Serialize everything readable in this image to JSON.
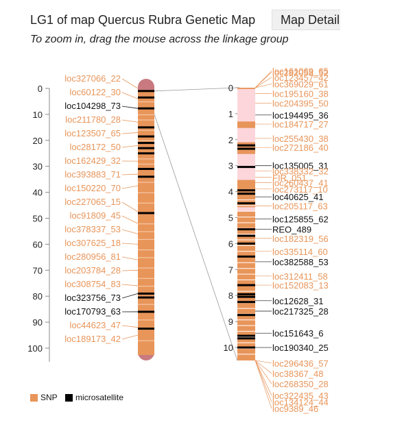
{
  "page": {
    "title": "LG1 of map Quercus Rubra Genetic Map",
    "detail_button": "Map Detail",
    "subtitle": "To zoom in, drag the mouse across the linkage group"
  },
  "colors": {
    "snp": "#e8955a",
    "microsatellite": "#000000",
    "chromosome_end": "#c97a80",
    "zoom_highlight": "#fcd6db"
  },
  "overview": {
    "axis_ticks": [
      "0",
      "10",
      "20",
      "30",
      "40",
      "50",
      "60",
      "70",
      "80",
      "90",
      "100"
    ],
    "axis_min": 0,
    "axis_max": 100,
    "markers": [
      {
        "name": "loc327066_22",
        "cM": 0,
        "type": "snp"
      },
      {
        "name": "loc60122_30",
        "cM": 4,
        "type": "snp"
      },
      {
        "name": "loc104298_73",
        "cM": 7.7,
        "type": "microsatellite"
      },
      {
        "name": "loc211780_28",
        "cM": 13,
        "type": "snp"
      },
      {
        "name": "loc123507_65",
        "cM": 17,
        "type": "snp"
      },
      {
        "name": "loc28172_50",
        "cM": 22,
        "type": "snp"
      },
      {
        "name": "loc162429_32",
        "cM": 28,
        "type": "snp"
      },
      {
        "name": "loc393883_71",
        "cM": 33,
        "type": "snp"
      },
      {
        "name": "loc150220_70",
        "cM": 37.5,
        "type": "snp"
      },
      {
        "name": "loc227065_15",
        "cM": 47.5,
        "type": "snp"
      },
      {
        "name": "loc91809_45",
        "cM": 52,
        "type": "snp"
      },
      {
        "name": "loc378337_53",
        "cM": 56,
        "type": "snp"
      },
      {
        "name": "loc307625_18",
        "cM": 60,
        "type": "snp"
      },
      {
        "name": "loc280956_81",
        "cM": 66,
        "type": "snp"
      },
      {
        "name": "loc203784_28",
        "cM": 70,
        "type": "snp"
      },
      {
        "name": "loc308754_83",
        "cM": 76,
        "type": "snp"
      },
      {
        "name": "loc323756_73",
        "cM": 79,
        "type": "microsatellite"
      },
      {
        "name": "loc170793_63",
        "cM": 86,
        "type": "microsatellite"
      },
      {
        "name": "loc44623_47",
        "cM": 92,
        "type": "snp"
      },
      {
        "name": "loc189173_42",
        "cM": 95,
        "type": "snp"
      }
    ],
    "black_bands_cM": [
      1,
      3.5,
      7.7,
      15,
      18.5,
      21,
      23,
      25,
      31,
      34,
      48,
      79,
      80.5,
      86,
      92.5
    ],
    "orange_bands_cM": [
      5,
      10,
      12,
      16,
      20,
      27,
      29,
      36,
      40,
      44,
      52,
      55,
      58,
      62,
      65,
      69,
      73,
      76,
      83,
      89,
      97
    ]
  },
  "zoom": {
    "axis_ticks": [
      "0",
      "1",
      "2",
      "3",
      "4",
      "5",
      "6",
      "7",
      "8",
      "9",
      "10"
    ],
    "axis_min": 0,
    "axis_max": 10.5,
    "overview_range_cM": [
      0,
      100
    ],
    "black_bands_cM": [
      2.22,
      2.35,
      3.05,
      3.95,
      4.08,
      4.45,
      5.45,
      5.7,
      6.0,
      6.5,
      7.6,
      7.95,
      8.05,
      8.25,
      8.75,
      9.55,
      9.65,
      10.0
    ],
    "labels": [
      {
        "name": "loc161069_65",
        "cM": -0.65,
        "type": "snp"
      },
      {
        "name": "loc282058_52",
        "cM": -0.6,
        "type": "snp"
      },
      {
        "name": "loc123457_42",
        "cM": -0.4,
        "type": "snp"
      },
      {
        "name": "loc369029_61",
        "cM": -0.15,
        "type": "snp"
      },
      {
        "name": "loc195160_38",
        "cM": 0.22,
        "type": "snp"
      },
      {
        "name": "loc204395_50",
        "cM": 0.6,
        "type": "snp"
      },
      {
        "name": "loc194495_36",
        "cM": 1.05,
        "type": "microsatellite"
      },
      {
        "name": "loc184717_27",
        "cM": 1.4,
        "type": "snp"
      },
      {
        "name": "loc255430_38",
        "cM": 1.95,
        "type": "snp"
      },
      {
        "name": "loc272186_40",
        "cM": 2.3,
        "type": "snp"
      },
      {
        "name": "loc135005_31",
        "cM": 3.0,
        "type": "microsatellite"
      },
      {
        "name": "loc338332_32",
        "cM": 3.2,
        "type": "snp"
      },
      {
        "name": "FIR_051",
        "cM": 3.45,
        "type": "snp"
      },
      {
        "name": "loc260437_41",
        "cM": 3.65,
        "type": "snp"
      },
      {
        "name": "loc273117_10",
        "cM": 3.9,
        "type": "snp"
      },
      {
        "name": "loc40625_41",
        "cM": 4.2,
        "type": "microsatellite"
      },
      {
        "name": "loc205117_63",
        "cM": 4.55,
        "type": "snp"
      },
      {
        "name": "loc125855_62",
        "cM": 5.05,
        "type": "microsatellite"
      },
      {
        "name": "REO_489",
        "cM": 5.45,
        "type": "microsatellite"
      },
      {
        "name": "loc182319_56",
        "cM": 5.8,
        "type": "snp"
      },
      {
        "name": "loc335114_60",
        "cM": 6.3,
        "type": "snp"
      },
      {
        "name": "loc382588_53",
        "cM": 6.7,
        "type": "microsatellite"
      },
      {
        "name": "loc312411_58",
        "cM": 7.25,
        "type": "snp"
      },
      {
        "name": "loc152083_13",
        "cM": 7.6,
        "type": "snp"
      },
      {
        "name": "loc12628_31",
        "cM": 8.2,
        "type": "microsatellite"
      },
      {
        "name": "loc217325_28",
        "cM": 8.6,
        "type": "microsatellite"
      },
      {
        "name": "loc151643_6",
        "cM": 9.45,
        "type": "microsatellite"
      },
      {
        "name": "loc190340_25",
        "cM": 10.0,
        "type": "microsatellite"
      },
      {
        "name": "loc296436_57",
        "cM": 10.6,
        "type": "snp"
      },
      {
        "name": "loc38367_48",
        "cM": 11.0,
        "type": "snp"
      },
      {
        "name": "loc268350_28",
        "cM": 11.4,
        "type": "snp"
      },
      {
        "name": "loc322435_43",
        "cM": 11.85,
        "type": "snp"
      },
      {
        "name": "loc134124_44",
        "cM": 12.1,
        "type": "snp"
      },
      {
        "name": "loc9389_46",
        "cM": 12.35,
        "type": "snp"
      }
    ]
  },
  "legend": [
    {
      "label": "SNP",
      "color": "#e8955a"
    },
    {
      "label": "microsatellite",
      "color": "#000000"
    }
  ]
}
